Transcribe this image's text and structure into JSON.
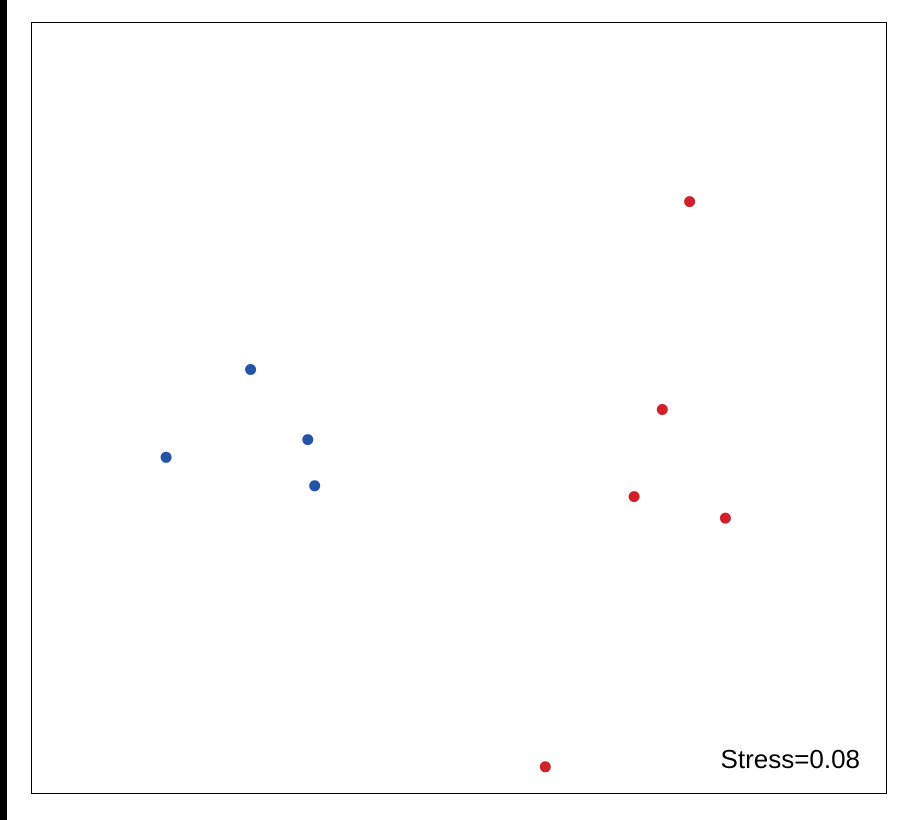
{
  "chart_data": {
    "type": "scatter",
    "title": "",
    "xlabel": "",
    "ylabel": "",
    "xlim": [
      0,
      100
    ],
    "ylim": [
      0,
      100
    ],
    "grid": false,
    "annotation": "Stress=0.08",
    "series": [
      {
        "color": "#2554a6",
        "points": [
          {
            "x": 15.7,
            "y": 43.6
          },
          {
            "x": 25.6,
            "y": 55.0
          },
          {
            "x": 32.3,
            "y": 45.9
          },
          {
            "x": 33.1,
            "y": 39.9
          }
        ]
      },
      {
        "color": "#d0202a",
        "points": [
          {
            "x": 77.0,
            "y": 76.8
          },
          {
            "x": 73.8,
            "y": 49.8
          },
          {
            "x": 70.5,
            "y": 38.5
          },
          {
            "x": 81.2,
            "y": 35.7
          },
          {
            "x": 60.1,
            "y": 3.4
          }
        ]
      }
    ]
  }
}
